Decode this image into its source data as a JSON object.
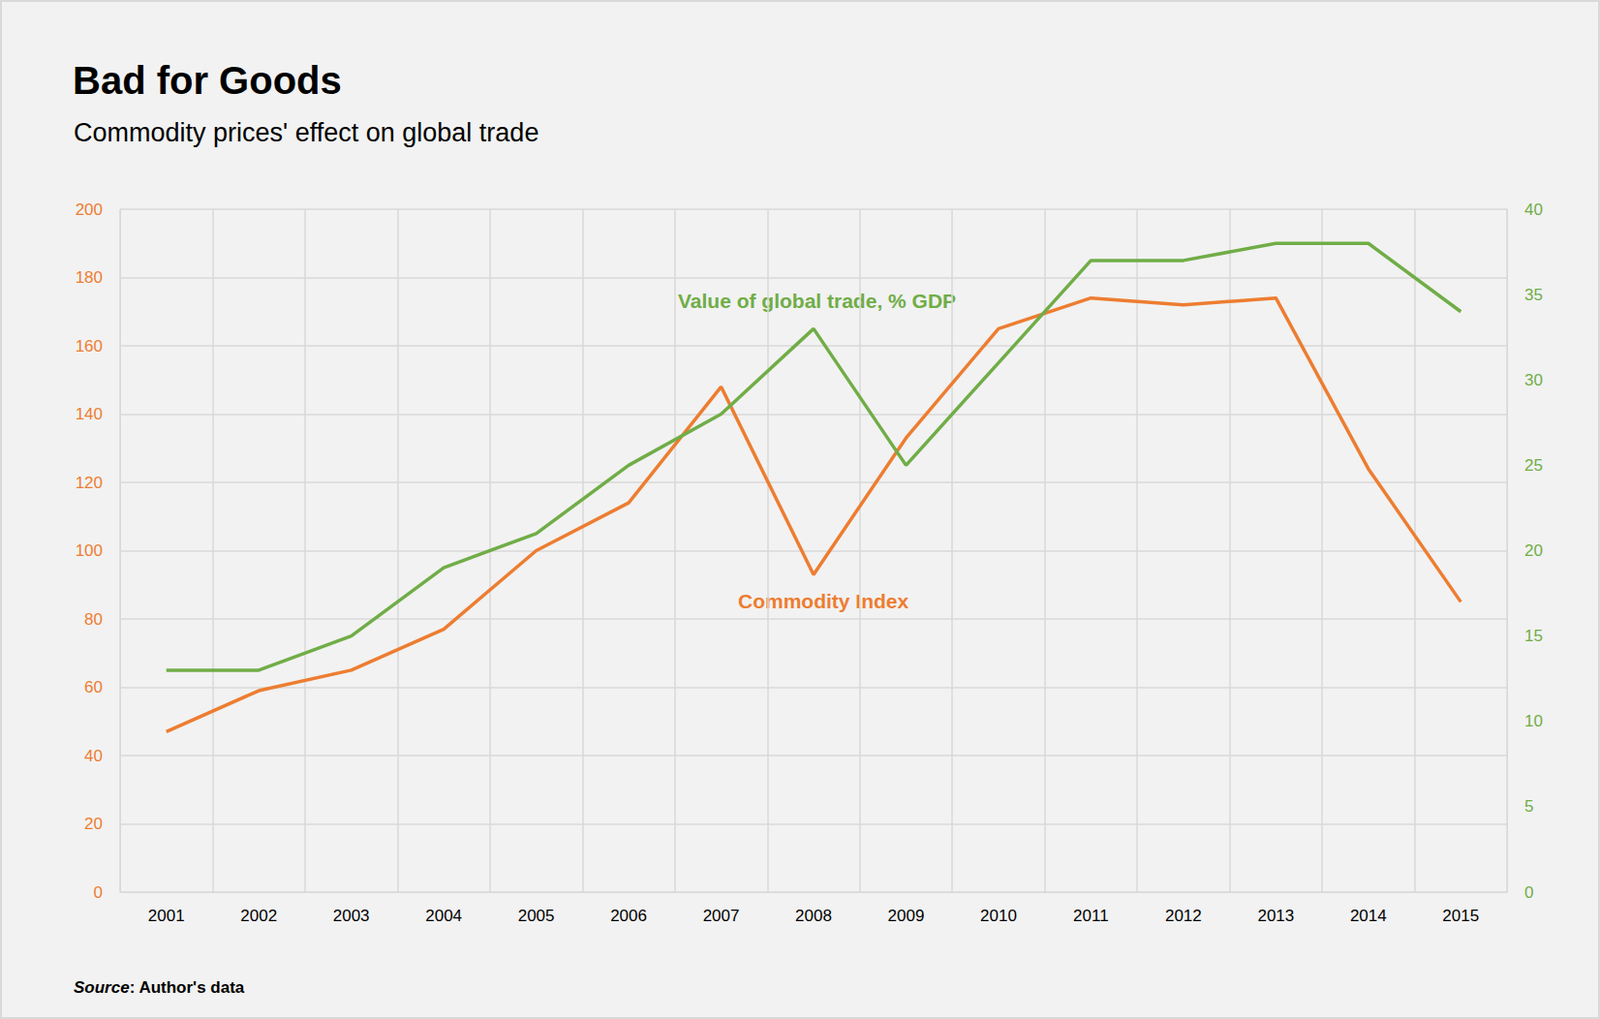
{
  "chart_data": {
    "type": "line",
    "title": "Bad for Goods",
    "subtitle": "Commodity prices' effect on global trade",
    "source": "Source: Author's data",
    "categories": [
      "2001",
      "2002",
      "2003",
      "2004",
      "2005",
      "2006",
      "2007",
      "2008",
      "2009",
      "2010",
      "2011",
      "2012",
      "2013",
      "2014",
      "2015"
    ],
    "series": [
      {
        "name": "Commodity Index",
        "color": "#ed7d31",
        "values": [
          47,
          59,
          65,
          77,
          100,
          114,
          148,
          93,
          133,
          165,
          174,
          172,
          174,
          124,
          85
        ]
      },
      {
        "name": "Value of global trade, % GDP",
        "color": "#70ad47",
        "axis": "y2",
        "values": [
          13,
          13,
          15,
          19,
          21,
          25,
          28,
          33,
          25,
          31,
          37,
          37,
          38,
          38,
          34
        ]
      }
    ],
    "ylim": [
      0,
      200
    ],
    "yticks": [
      0,
      20,
      40,
      60,
      80,
      100,
      120,
      140,
      160,
      180,
      200
    ],
    "y2lim": [
      0,
      40
    ],
    "y2ticks": [
      0,
      5,
      10,
      15,
      20,
      25,
      30,
      35,
      40
    ],
    "grid": true
  }
}
